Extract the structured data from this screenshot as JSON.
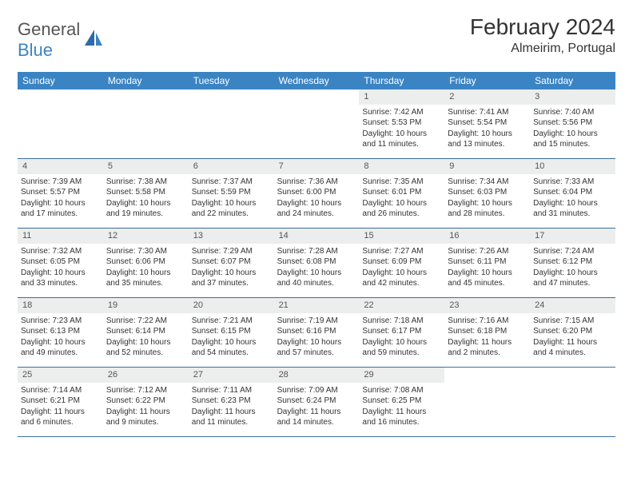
{
  "logo": {
    "general": "General",
    "blue": "Blue"
  },
  "title": {
    "month": "February 2024",
    "location": "Almeirim, Portugal"
  },
  "colors": {
    "header_bg": "#3b84c4",
    "header_fg": "#ffffff",
    "daynum_bg": "#eceded",
    "text": "#333333",
    "row_border": "#3b6fa0"
  },
  "day_headers": [
    "Sunday",
    "Monday",
    "Tuesday",
    "Wednesday",
    "Thursday",
    "Friday",
    "Saturday"
  ],
  "weeks": [
    [
      null,
      null,
      null,
      null,
      {
        "n": "1",
        "sr": "Sunrise: 7:42 AM",
        "ss": "Sunset: 5:53 PM",
        "dl": "Daylight: 10 hours and 11 minutes."
      },
      {
        "n": "2",
        "sr": "Sunrise: 7:41 AM",
        "ss": "Sunset: 5:54 PM",
        "dl": "Daylight: 10 hours and 13 minutes."
      },
      {
        "n": "3",
        "sr": "Sunrise: 7:40 AM",
        "ss": "Sunset: 5:56 PM",
        "dl": "Daylight: 10 hours and 15 minutes."
      }
    ],
    [
      {
        "n": "4",
        "sr": "Sunrise: 7:39 AM",
        "ss": "Sunset: 5:57 PM",
        "dl": "Daylight: 10 hours and 17 minutes."
      },
      {
        "n": "5",
        "sr": "Sunrise: 7:38 AM",
        "ss": "Sunset: 5:58 PM",
        "dl": "Daylight: 10 hours and 19 minutes."
      },
      {
        "n": "6",
        "sr": "Sunrise: 7:37 AM",
        "ss": "Sunset: 5:59 PM",
        "dl": "Daylight: 10 hours and 22 minutes."
      },
      {
        "n": "7",
        "sr": "Sunrise: 7:36 AM",
        "ss": "Sunset: 6:00 PM",
        "dl": "Daylight: 10 hours and 24 minutes."
      },
      {
        "n": "8",
        "sr": "Sunrise: 7:35 AM",
        "ss": "Sunset: 6:01 PM",
        "dl": "Daylight: 10 hours and 26 minutes."
      },
      {
        "n": "9",
        "sr": "Sunrise: 7:34 AM",
        "ss": "Sunset: 6:03 PM",
        "dl": "Daylight: 10 hours and 28 minutes."
      },
      {
        "n": "10",
        "sr": "Sunrise: 7:33 AM",
        "ss": "Sunset: 6:04 PM",
        "dl": "Daylight: 10 hours and 31 minutes."
      }
    ],
    [
      {
        "n": "11",
        "sr": "Sunrise: 7:32 AM",
        "ss": "Sunset: 6:05 PM",
        "dl": "Daylight: 10 hours and 33 minutes."
      },
      {
        "n": "12",
        "sr": "Sunrise: 7:30 AM",
        "ss": "Sunset: 6:06 PM",
        "dl": "Daylight: 10 hours and 35 minutes."
      },
      {
        "n": "13",
        "sr": "Sunrise: 7:29 AM",
        "ss": "Sunset: 6:07 PM",
        "dl": "Daylight: 10 hours and 37 minutes."
      },
      {
        "n": "14",
        "sr": "Sunrise: 7:28 AM",
        "ss": "Sunset: 6:08 PM",
        "dl": "Daylight: 10 hours and 40 minutes."
      },
      {
        "n": "15",
        "sr": "Sunrise: 7:27 AM",
        "ss": "Sunset: 6:09 PM",
        "dl": "Daylight: 10 hours and 42 minutes."
      },
      {
        "n": "16",
        "sr": "Sunrise: 7:26 AM",
        "ss": "Sunset: 6:11 PM",
        "dl": "Daylight: 10 hours and 45 minutes."
      },
      {
        "n": "17",
        "sr": "Sunrise: 7:24 AM",
        "ss": "Sunset: 6:12 PM",
        "dl": "Daylight: 10 hours and 47 minutes."
      }
    ],
    [
      {
        "n": "18",
        "sr": "Sunrise: 7:23 AM",
        "ss": "Sunset: 6:13 PM",
        "dl": "Daylight: 10 hours and 49 minutes."
      },
      {
        "n": "19",
        "sr": "Sunrise: 7:22 AM",
        "ss": "Sunset: 6:14 PM",
        "dl": "Daylight: 10 hours and 52 minutes."
      },
      {
        "n": "20",
        "sr": "Sunrise: 7:21 AM",
        "ss": "Sunset: 6:15 PM",
        "dl": "Daylight: 10 hours and 54 minutes."
      },
      {
        "n": "21",
        "sr": "Sunrise: 7:19 AM",
        "ss": "Sunset: 6:16 PM",
        "dl": "Daylight: 10 hours and 57 minutes."
      },
      {
        "n": "22",
        "sr": "Sunrise: 7:18 AM",
        "ss": "Sunset: 6:17 PM",
        "dl": "Daylight: 10 hours and 59 minutes."
      },
      {
        "n": "23",
        "sr": "Sunrise: 7:16 AM",
        "ss": "Sunset: 6:18 PM",
        "dl": "Daylight: 11 hours and 2 minutes."
      },
      {
        "n": "24",
        "sr": "Sunrise: 7:15 AM",
        "ss": "Sunset: 6:20 PM",
        "dl": "Daylight: 11 hours and 4 minutes."
      }
    ],
    [
      {
        "n": "25",
        "sr": "Sunrise: 7:14 AM",
        "ss": "Sunset: 6:21 PM",
        "dl": "Daylight: 11 hours and 6 minutes."
      },
      {
        "n": "26",
        "sr": "Sunrise: 7:12 AM",
        "ss": "Sunset: 6:22 PM",
        "dl": "Daylight: 11 hours and 9 minutes."
      },
      {
        "n": "27",
        "sr": "Sunrise: 7:11 AM",
        "ss": "Sunset: 6:23 PM",
        "dl": "Daylight: 11 hours and 11 minutes."
      },
      {
        "n": "28",
        "sr": "Sunrise: 7:09 AM",
        "ss": "Sunset: 6:24 PM",
        "dl": "Daylight: 11 hours and 14 minutes."
      },
      {
        "n": "29",
        "sr": "Sunrise: 7:08 AM",
        "ss": "Sunset: 6:25 PM",
        "dl": "Daylight: 11 hours and 16 minutes."
      },
      null,
      null
    ]
  ]
}
